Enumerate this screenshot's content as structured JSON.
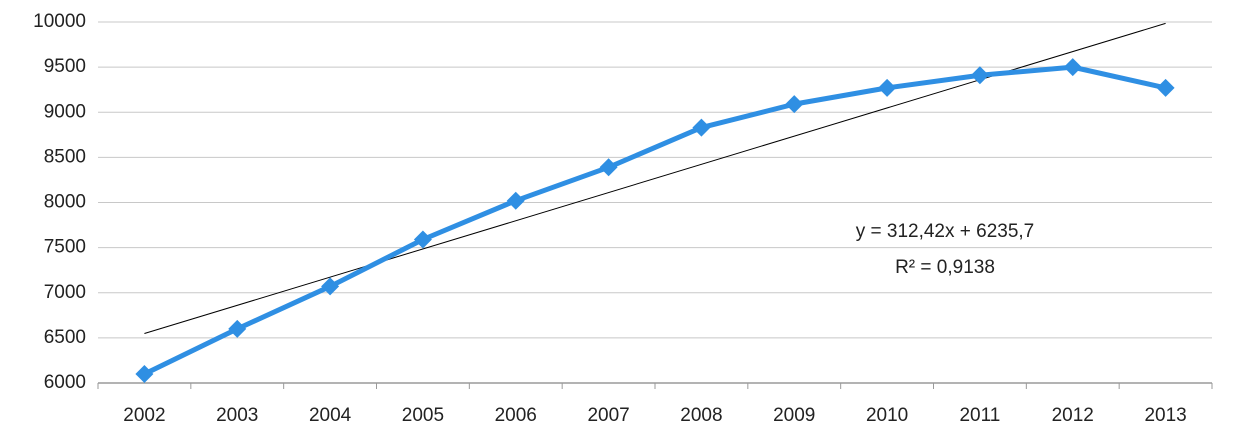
{
  "chart_data": {
    "type": "line",
    "categories": [
      "2002",
      "2003",
      "2004",
      "2005",
      "2006",
      "2007",
      "2008",
      "2009",
      "2010",
      "2011",
      "2012",
      "2013"
    ],
    "series": [
      {
        "color": "#2f8fe3",
        "values": [
          6100,
          6600,
          7070,
          7590,
          8020,
          8390,
          8830,
          9090,
          9270,
          9410,
          9500,
          9270
        ]
      }
    ],
    "ylim": [
      6000,
      10000
    ],
    "yticks": [
      6000,
      6500,
      7000,
      7500,
      8000,
      8500,
      9000,
      9500,
      10000
    ],
    "grid": true,
    "trendline": {
      "slope": 312.42,
      "intercept": 6235.7,
      "color": "#000000",
      "equation": "y = 312,42x + 6235,7",
      "r_squared": "R² = 0,9138"
    }
  }
}
